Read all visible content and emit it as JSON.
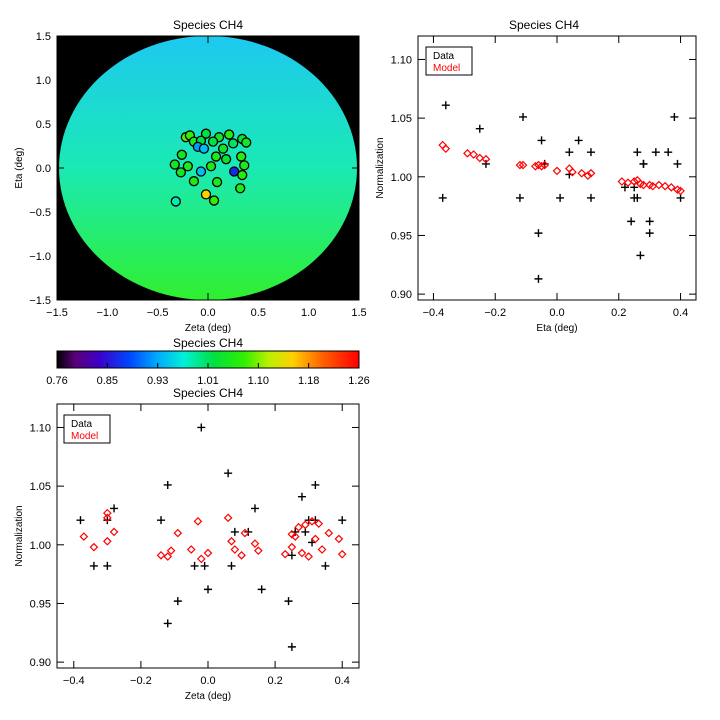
{
  "chart_data": [
    {
      "type": "map",
      "title": "Species CH4",
      "xlabel": "Zeta (deg)",
      "ylabel": "Eta (deg)",
      "xlim": [
        -1.5,
        1.5
      ],
      "ylim": [
        -1.5,
        1.5
      ],
      "xticks": [
        "−1.5",
        "−1.0",
        "−0.5",
        "0.0",
        "0.5",
        "1.0",
        "1.5"
      ],
      "yticks": [
        "−1.5",
        "−1.0",
        "−0.5",
        "0.0",
        "0.5",
        "1.0",
        "1.5"
      ],
      "field_value_top": 0.95,
      "field_value_bottom": 1.09,
      "points": [
        {
          "zeta": -0.22,
          "eta": 0.35,
          "value": 1.08
        },
        {
          "zeta": -0.18,
          "eta": 0.37,
          "value": 1.07
        },
        {
          "zeta": -0.02,
          "eta": 0.39,
          "value": 1.02
        },
        {
          "zeta": 0.11,
          "eta": 0.35,
          "value": 1.04
        },
        {
          "zeta": 0.21,
          "eta": 0.38,
          "value": 1.06
        },
        {
          "zeta": 0.34,
          "eta": 0.33,
          "value": 1.03
        },
        {
          "zeta": -0.14,
          "eta": 0.3,
          "value": 1.05
        },
        {
          "zeta": -0.07,
          "eta": 0.31,
          "value": 1.02
        },
        {
          "zeta": 0.05,
          "eta": 0.3,
          "value": 1.02
        },
        {
          "zeta": 0.15,
          "eta": 0.22,
          "value": 1.04
        },
        {
          "zeta": 0.25,
          "eta": 0.28,
          "value": 1.01
        },
        {
          "zeta": 0.38,
          "eta": 0.29,
          "value": 1.04
        },
        {
          "zeta": -0.1,
          "eta": 0.24,
          "value": 0.92
        },
        {
          "zeta": -0.04,
          "eta": 0.22,
          "value": 0.94
        },
        {
          "zeta": -0.26,
          "eta": 0.15,
          "value": 1.04
        },
        {
          "zeta": 0.08,
          "eta": 0.13,
          "value": 1.05
        },
        {
          "zeta": 0.18,
          "eta": 0.1,
          "value": 1.03
        },
        {
          "zeta": 0.33,
          "eta": 0.13,
          "value": 1.06
        },
        {
          "zeta": -0.33,
          "eta": 0.04,
          "value": 1.04
        },
        {
          "zeta": -0.2,
          "eta": 0.02,
          "value": 1.05
        },
        {
          "zeta": 0.03,
          "eta": 0.02,
          "value": 1.05
        },
        {
          "zeta": 0.36,
          "eta": 0.03,
          "value": 1.05
        },
        {
          "zeta": -0.27,
          "eta": -0.05,
          "value": 1.04
        },
        {
          "zeta": -0.07,
          "eta": -0.04,
          "value": 0.94
        },
        {
          "zeta": 0.26,
          "eta": -0.04,
          "value": 0.86
        },
        {
          "zeta": 0.34,
          "eta": -0.08,
          "value": 1.06
        },
        {
          "zeta": -0.14,
          "eta": -0.15,
          "value": 1.05
        },
        {
          "zeta": 0.09,
          "eta": -0.16,
          "value": 1.05
        },
        {
          "zeta": 0.32,
          "eta": -0.23,
          "value": 1.05
        },
        {
          "zeta": -0.02,
          "eta": -0.3,
          "value": 1.15
        },
        {
          "zeta": -0.32,
          "eta": -0.38,
          "value": 0.98
        },
        {
          "zeta": 0.06,
          "eta": -0.37,
          "value": 1.07
        }
      ]
    },
    {
      "type": "colorbar",
      "title": "Species CH4",
      "ticks": [
        "0.76",
        "0.85",
        "0.93",
        "1.01",
        "1.10",
        "1.18",
        "1.26"
      ],
      "range": [
        0.76,
        1.26
      ]
    },
    {
      "type": "scatter",
      "title": "Species CH4",
      "xlabel": "Eta (deg)",
      "ylabel": "Normalization",
      "xlim": [
        -0.45,
        0.45
      ],
      "ylim": [
        0.895,
        1.12
      ],
      "xticks": [
        "−0.4",
        "−0.2",
        "0.0",
        "0.2",
        "0.4"
      ],
      "yticks": [
        "0.90",
        "0.95",
        "1.00",
        "1.05",
        "1.10"
      ],
      "legend": [
        "Data",
        "Model"
      ],
      "series": [
        {
          "name": "Data",
          "color": "#000000",
          "marker": "plus",
          "points": [
            [
              -0.37,
              0.982
            ],
            [
              -0.36,
              1.061
            ],
            [
              -0.3,
              1.1
            ],
            [
              -0.25,
              1.041
            ],
            [
              -0.23,
              1.011
            ],
            [
              -0.12,
              0.982
            ],
            [
              -0.11,
              1.051
            ],
            [
              -0.06,
              0.913
            ],
            [
              -0.06,
              0.952
            ],
            [
              -0.05,
              1.031
            ],
            [
              -0.04,
              1.011
            ],
            [
              0.01,
              0.982
            ],
            [
              0.04,
              1.021
            ],
            [
              0.04,
              1.002
            ],
            [
              0.07,
              1.031
            ],
            [
              0.11,
              1.021
            ],
            [
              0.11,
              0.982
            ],
            [
              0.22,
              0.991
            ],
            [
              0.24,
              0.962
            ],
            [
              0.25,
              0.982
            ],
            [
              0.25,
              0.991
            ],
            [
              0.26,
              1.021
            ],
            [
              0.26,
              0.982
            ],
            [
              0.27,
              0.933
            ],
            [
              0.28,
              1.011
            ],
            [
              0.28,
              1.011
            ],
            [
              0.3,
              0.952
            ],
            [
              0.3,
              0.962
            ],
            [
              0.32,
              1.021
            ],
            [
              0.36,
              1.021
            ],
            [
              0.38,
              1.051
            ],
            [
              0.39,
              1.011
            ],
            [
              0.4,
              0.982
            ]
          ]
        },
        {
          "name": "Model",
          "color": "#ff0000",
          "marker": "diamond",
          "points": [
            [
              -0.37,
              1.027
            ],
            [
              -0.36,
              1.024
            ],
            [
              -0.29,
              1.02
            ],
            [
              -0.27,
              1.019
            ],
            [
              -0.25,
              1.016
            ],
            [
              -0.23,
              1.015
            ],
            [
              -0.12,
              1.01
            ],
            [
              -0.11,
              1.01
            ],
            [
              -0.07,
              1.009
            ],
            [
              -0.06,
              1.01
            ],
            [
              -0.05,
              1.009
            ],
            [
              -0.04,
              1.01
            ],
            [
              0.0,
              1.005
            ],
            [
              0.04,
              1.007
            ],
            [
              0.05,
              1.004
            ],
            [
              0.08,
              1.003
            ],
            [
              0.1,
              1.001
            ],
            [
              0.11,
              1.003
            ],
            [
              0.21,
              0.996
            ],
            [
              0.23,
              0.995
            ],
            [
              0.25,
              0.996
            ],
            [
              0.26,
              0.997
            ],
            [
              0.27,
              0.994
            ],
            [
              0.28,
              0.993
            ],
            [
              0.3,
              0.993
            ],
            [
              0.31,
              0.992
            ],
            [
              0.33,
              0.993
            ],
            [
              0.35,
              0.992
            ],
            [
              0.37,
              0.991
            ],
            [
              0.39,
              0.989
            ],
            [
              0.4,
              0.988
            ]
          ]
        }
      ]
    },
    {
      "type": "scatter",
      "title": "Species CH4",
      "xlabel": "Zeta (deg)",
      "ylabel": "Normalization",
      "xlim": [
        -0.45,
        0.45
      ],
      "ylim": [
        0.895,
        1.12
      ],
      "xticks": [
        "−0.4",
        "−0.2",
        "0.0",
        "0.2",
        "0.4"
      ],
      "yticks": [
        "0.90",
        "0.95",
        "1.00",
        "1.05",
        "1.10"
      ],
      "legend": [
        "Data",
        "Model"
      ],
      "series": [
        {
          "name": "Data",
          "color": "#000000",
          "marker": "plus",
          "points": [
            [
              -0.38,
              1.021
            ],
            [
              -0.34,
              0.982
            ],
            [
              -0.3,
              1.021
            ],
            [
              -0.3,
              0.982
            ],
            [
              -0.28,
              1.031
            ],
            [
              -0.14,
              1.021
            ],
            [
              -0.12,
              1.051
            ],
            [
              -0.12,
              0.933
            ],
            [
              -0.09,
              0.952
            ],
            [
              -0.04,
              0.982
            ],
            [
              -0.02,
              1.1
            ],
            [
              -0.01,
              0.982
            ],
            [
              0.0,
              0.962
            ],
            [
              0.06,
              1.061
            ],
            [
              0.07,
              0.982
            ],
            [
              0.08,
              1.011
            ],
            [
              0.12,
              1.011
            ],
            [
              0.14,
              1.031
            ],
            [
              0.16,
              0.962
            ],
            [
              0.24,
              0.952
            ],
            [
              0.25,
              0.913
            ],
            [
              0.25,
              0.991
            ],
            [
              0.26,
              1.011
            ],
            [
              0.28,
              1.041
            ],
            [
              0.29,
              1.011
            ],
            [
              0.3,
              1.021
            ],
            [
              0.31,
              1.002
            ],
            [
              0.32,
              1.051
            ],
            [
              0.32,
              1.021
            ],
            [
              0.35,
              0.982
            ],
            [
              0.4,
              1.021
            ]
          ]
        },
        {
          "name": "Model",
          "color": "#ff0000",
          "marker": "diamond",
          "points": [
            [
              -0.37,
              1.007
            ],
            [
              -0.34,
              0.998
            ],
            [
              -0.3,
              1.027
            ],
            [
              -0.3,
              1.023
            ],
            [
              -0.3,
              1.003
            ],
            [
              -0.28,
              1.011
            ],
            [
              -0.14,
              0.991
            ],
            [
              -0.12,
              0.99
            ],
            [
              -0.11,
              0.995
            ],
            [
              -0.09,
              1.01
            ],
            [
              -0.05,
              0.996
            ],
            [
              -0.03,
              1.02
            ],
            [
              -0.02,
              0.988
            ],
            [
              0.0,
              0.993
            ],
            [
              0.06,
              1.023
            ],
            [
              0.07,
              1.003
            ],
            [
              0.08,
              0.996
            ],
            [
              0.1,
              0.991
            ],
            [
              0.11,
              1.01
            ],
            [
              0.14,
              1.001
            ],
            [
              0.15,
              0.995
            ],
            [
              0.23,
              0.992
            ],
            [
              0.25,
              1.009
            ],
            [
              0.25,
              0.998
            ],
            [
              0.26,
              1.007
            ],
            [
              0.27,
              1.015
            ],
            [
              0.28,
              0.993
            ],
            [
              0.29,
              1.017
            ],
            [
              0.3,
              0.99
            ],
            [
              0.31,
              1.02
            ],
            [
              0.32,
              1.005
            ],
            [
              0.33,
              1.018
            ],
            [
              0.34,
              0.996
            ],
            [
              0.36,
              1.01
            ],
            [
              0.39,
              1.005
            ],
            [
              0.4,
              0.992
            ]
          ]
        }
      ]
    }
  ]
}
